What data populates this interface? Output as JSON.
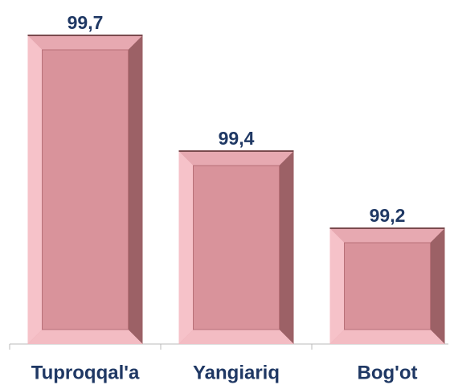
{
  "chart_data": {
    "type": "bar",
    "categories": [
      "Tuproqqal'a",
      "Yangiariq",
      "Bog'ot"
    ],
    "values": [
      99.7,
      99.4,
      99.2
    ],
    "value_labels": [
      "99,7",
      "99,4",
      "99,2"
    ],
    "color": "#d9939b",
    "ylim": [
      98.9,
      99.75
    ]
  }
}
